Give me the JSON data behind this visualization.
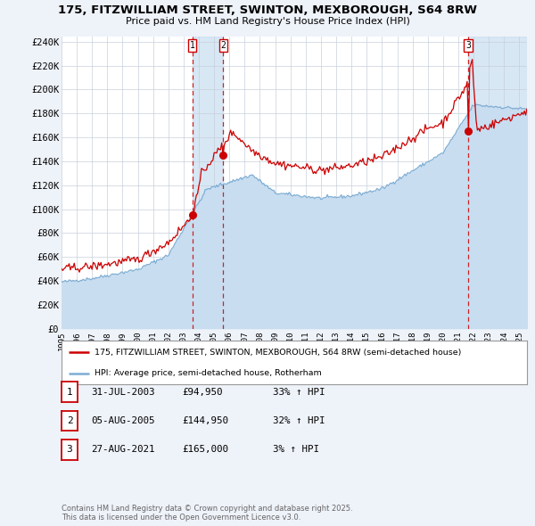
{
  "title_line1": "175, FITZWILLIAM STREET, SWINTON, MEXBOROUGH, S64 8RW",
  "title_line2": "Price paid vs. HM Land Registry's House Price Index (HPI)",
  "xlim_start": 1995.0,
  "xlim_end": 2025.5,
  "ylim_min": 0,
  "ylim_max": 244000,
  "yticks": [
    0,
    20000,
    40000,
    60000,
    80000,
    100000,
    120000,
    140000,
    160000,
    180000,
    200000,
    220000,
    240000
  ],
  "ytick_labels": [
    "£0",
    "£20K",
    "£40K",
    "£60K",
    "£80K",
    "£100K",
    "£120K",
    "£140K",
    "£160K",
    "£180K",
    "£200K",
    "£220K",
    "£240K"
  ],
  "sale_color": "#cc0000",
  "hpi_color": "#7dadd4",
  "hpi_fill_color": "#c8ddf0",
  "vline_color": "#cc0000",
  "bg_color": "#eef2f9",
  "plot_bg": "#ffffff",
  "grid_color": "#c8d0dc",
  "sale1_x": 2003.578,
  "sale1_y": 94950,
  "sale2_x": 2005.592,
  "sale2_y": 144950,
  "sale3_x": 2021.651,
  "sale3_y": 165000,
  "legend_sale": "175, FITZWILLIAM STREET, SWINTON, MEXBOROUGH, S64 8RW (semi-detached house)",
  "legend_hpi": "HPI: Average price, semi-detached house, Rotherham",
  "table_rows": [
    [
      "1",
      "31-JUL-2003",
      "£94,950",
      "33% ↑ HPI"
    ],
    [
      "2",
      "05-AUG-2005",
      "£144,950",
      "32% ↑ HPI"
    ],
    [
      "3",
      "27-AUG-2021",
      "£165,000",
      "3% ↑ HPI"
    ]
  ],
  "footer": "Contains HM Land Registry data © Crown copyright and database right 2025.\nThis data is licensed under the Open Government Licence v3.0."
}
